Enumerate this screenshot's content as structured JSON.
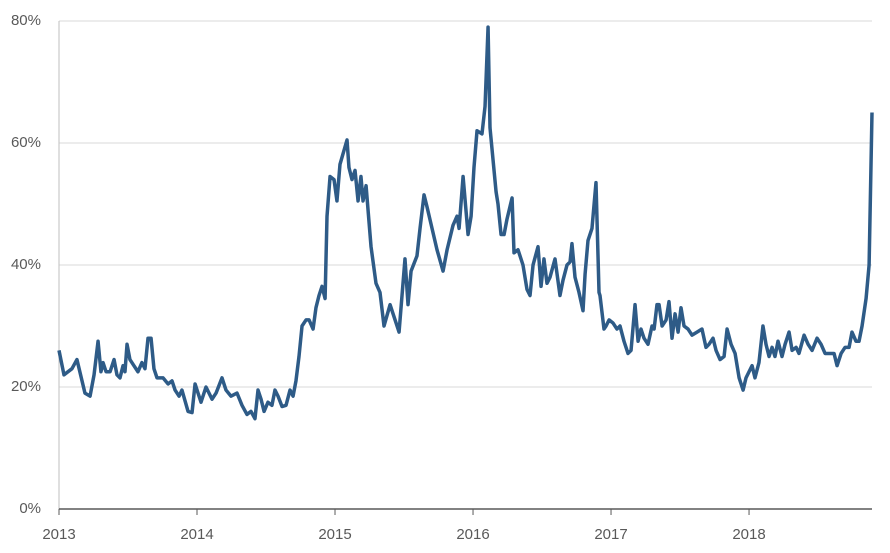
{
  "chart_data": {
    "type": "line",
    "x": [
      2013.0,
      2013.036,
      2013.094,
      2013.13,
      2013.188,
      2013.225,
      2013.254,
      2013.283,
      2013.304,
      2013.319,
      2013.341,
      2013.37,
      2013.399,
      2013.42,
      2013.442,
      2013.464,
      2013.478,
      2013.493,
      2013.514,
      2013.543,
      2013.572,
      2013.601,
      2013.623,
      2013.645,
      2013.667,
      2013.688,
      2013.71,
      2013.754,
      2013.79,
      2013.819,
      2013.841,
      2013.87,
      2013.891,
      2013.935,
      2013.964,
      2013.986,
      2014.029,
      2014.065,
      2014.109,
      2014.138,
      2014.181,
      2014.21,
      2014.246,
      2014.29,
      2014.326,
      2014.362,
      2014.391,
      2014.42,
      2014.442,
      2014.464,
      2014.486,
      2014.514,
      2014.543,
      2014.565,
      2014.587,
      2014.616,
      2014.645,
      2014.674,
      2014.696,
      2014.717,
      2014.739,
      2014.761,
      2014.79,
      2014.812,
      2014.841,
      2014.862,
      2014.884,
      2014.906,
      2014.928,
      2014.942,
      2014.964,
      2014.993,
      2015.014,
      2015.036,
      2015.087,
      2015.101,
      2015.123,
      2015.145,
      2015.167,
      2015.188,
      2015.203,
      2015.225,
      2015.261,
      2015.297,
      2015.326,
      2015.355,
      2015.399,
      2015.464,
      2015.507,
      2015.529,
      2015.551,
      2015.594,
      2015.616,
      2015.645,
      2015.667,
      2015.703,
      2015.739,
      2015.783,
      2015.812,
      2015.855,
      2015.884,
      2015.899,
      2015.928,
      2015.964,
      2015.986,
      2016.007,
      2016.029,
      2016.065,
      2016.087,
      2016.109,
      2016.123,
      2016.167,
      2016.181,
      2016.203,
      2016.225,
      2016.246,
      2016.283,
      2016.297,
      2016.326,
      2016.362,
      2016.391,
      2016.413,
      2016.435,
      2016.471,
      2016.493,
      2016.514,
      2016.536,
      2016.558,
      2016.594,
      2016.609,
      2016.63,
      2016.652,
      2016.681,
      2016.703,
      2016.717,
      2016.739,
      2016.768,
      2016.797,
      2016.812,
      2016.833,
      2016.862,
      2016.891,
      2016.913,
      2016.92,
      2016.949,
      2016.964,
      2016.986,
      2017.014,
      2017.043,
      2017.065,
      2017.094,
      2017.123,
      2017.145,
      2017.174,
      2017.196,
      2017.217,
      2017.239,
      2017.268,
      2017.297,
      2017.312,
      2017.333,
      2017.348,
      2017.37,
      2017.399,
      2017.42,
      2017.442,
      2017.464,
      2017.486,
      2017.507,
      2017.529,
      2017.558,
      2017.587,
      2017.623,
      2017.659,
      2017.688,
      2017.71,
      2017.739,
      2017.761,
      2017.79,
      2017.819,
      2017.841,
      2017.87,
      2017.899,
      2017.928,
      2017.957,
      2017.978,
      2018.022,
      2018.043,
      2018.072,
      2018.101,
      2018.123,
      2018.145,
      2018.167,
      2018.188,
      2018.21,
      2018.239,
      2018.261,
      2018.29,
      2018.312,
      2018.341,
      2018.362,
      2018.399,
      2018.428,
      2018.457,
      2018.493,
      2018.522,
      2018.551,
      2018.587,
      2018.616,
      2018.638,
      2018.667,
      2018.696,
      2018.725,
      2018.746,
      2018.775,
      2018.797,
      2018.819,
      2018.848,
      2018.87,
      2018.891
    ],
    "series": [
      {
        "color": "#2e5b87",
        "values": [
          26,
          22,
          23,
          24.5,
          19,
          18.5,
          22,
          27.5,
          22.5,
          24,
          22.5,
          22.5,
          24.5,
          22,
          21.5,
          23.5,
          22.5,
          27,
          24.5,
          23.5,
          22.5,
          24,
          23,
          28,
          28,
          23,
          21.5,
          21.5,
          20.5,
          21,
          19.5,
          18.5,
          19.5,
          16,
          15.8,
          20.5,
          17.5,
          20,
          18,
          19,
          21.5,
          19.5,
          18.5,
          19,
          17,
          15.5,
          16,
          14.8,
          19.5,
          18,
          16,
          17.5,
          17,
          19.5,
          18.5,
          16.8,
          17,
          19.5,
          18.5,
          21,
          25,
          30,
          31,
          31,
          29.5,
          33,
          35,
          36.5,
          34.5,
          48,
          54.5,
          54,
          50.5,
          56.5,
          60.5,
          56,
          54,
          55.5,
          50.5,
          54.5,
          50.5,
          53,
          43,
          37,
          35.5,
          30,
          33.5,
          29,
          41,
          33.5,
          39,
          41.5,
          46,
          51.5,
          49.5,
          46,
          42.5,
          39,
          42.5,
          46.5,
          48,
          46,
          54.5,
          45,
          48,
          56,
          62,
          61.5,
          66,
          79,
          62.5,
          52,
          50,
          45,
          45,
          47.5,
          51,
          42,
          42.5,
          40,
          36,
          35,
          40,
          43,
          36.5,
          41,
          37,
          38,
          41,
          38.5,
          35,
          37.5,
          40,
          40.5,
          43.5,
          38,
          35.5,
          32.5,
          38.5,
          44,
          46,
          53.5,
          35.5,
          35,
          29.5,
          30,
          31,
          30.5,
          29.5,
          30,
          27.5,
          25.5,
          26,
          33.5,
          27.5,
          29.5,
          28,
          27,
          30,
          29.5,
          33.5,
          33.5,
          30,
          31,
          34,
          28,
          32,
          29,
          33,
          30,
          29.5,
          28.5,
          29,
          29.5,
          26.5,
          27,
          28,
          26,
          24.5,
          25,
          29.5,
          27,
          25.5,
          21.5,
          19.5,
          21.5,
          23.5,
          21.5,
          24,
          30,
          27,
          25,
          26.5,
          25,
          27.5,
          25,
          27,
          29,
          26,
          26.5,
          25.5,
          28.5,
          27,
          26,
          28,
          27,
          25.5,
          25.5,
          25.5,
          23.5,
          25.5,
          26.5,
          26.5,
          29,
          27.5,
          27.5,
          30,
          34.5,
          40,
          65
        ]
      }
    ],
    "xlim": [
      2013,
      2018.891
    ],
    "xticks": [
      2013,
      2014,
      2015,
      2016,
      2017,
      2018
    ],
    "ylim": [
      0,
      80
    ],
    "yticks": [
      {
        "value": 0,
        "label": "0%"
      },
      {
        "value": 20,
        "label": "20%"
      },
      {
        "value": 40,
        "label": "40%"
      },
      {
        "value": 60,
        "label": "60%"
      },
      {
        "value": 80,
        "label": "80%"
      }
    ],
    "grid": true
  }
}
